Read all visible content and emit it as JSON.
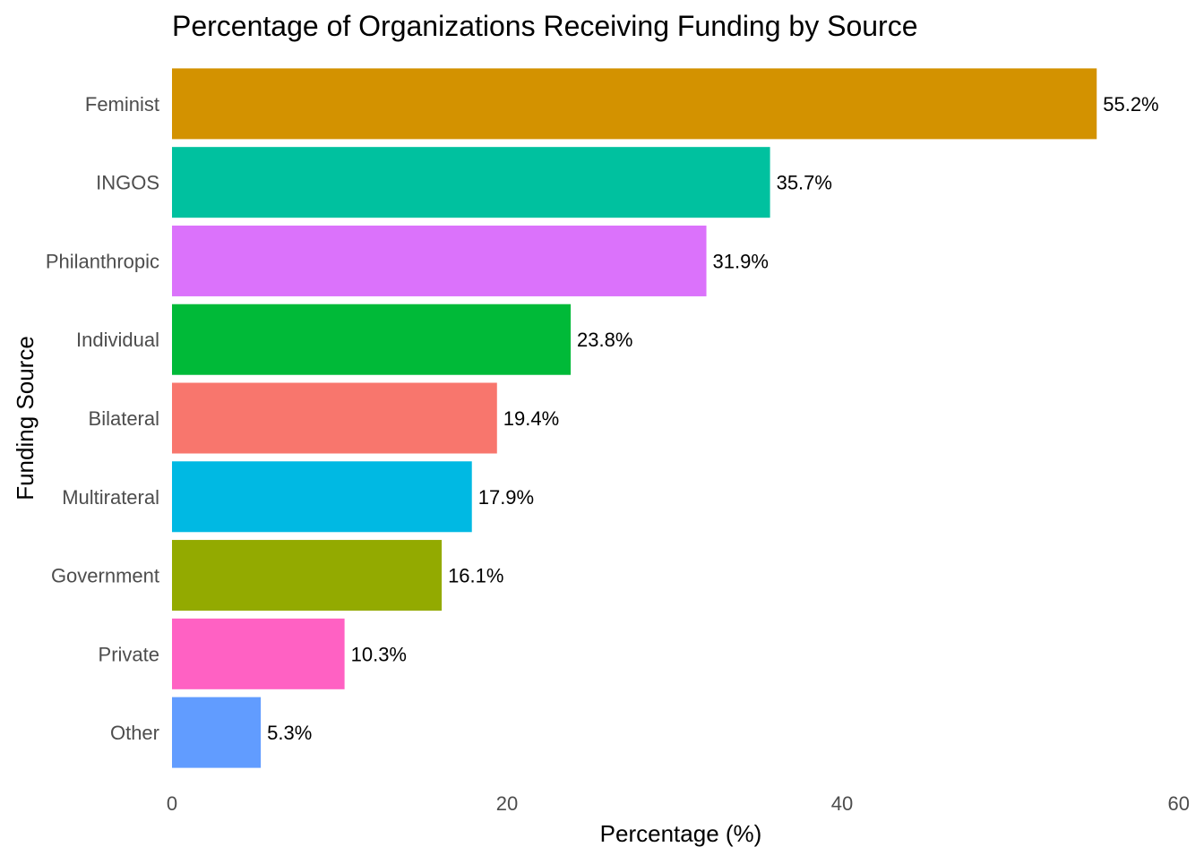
{
  "chart_data": {
    "type": "bar",
    "orientation": "horizontal",
    "title": "Percentage of Organizations Receiving Funding by Source",
    "xlabel": "Percentage (%)",
    "ylabel": "Funding Source",
    "xlim": [
      0,
      60
    ],
    "x_ticks": [
      "0",
      "20",
      "40",
      "60"
    ],
    "grid": false,
    "legend": "none",
    "categories": [
      "Feminist",
      "INGOS",
      "Philanthropic",
      "Individual",
      "Bilateral",
      "Multirateral",
      "Government",
      "Private",
      "Other"
    ],
    "values": [
      55.2,
      35.7,
      31.9,
      23.8,
      19.4,
      17.9,
      16.1,
      10.3,
      5.3
    ],
    "labels": [
      "55.2%",
      "35.7%",
      "31.9%",
      "23.8%",
      "19.4%",
      "17.9%",
      "16.1%",
      "10.3%",
      "5.3%"
    ],
    "colors": [
      "#D39200",
      "#00C19F",
      "#DB72FB",
      "#00BA38",
      "#F8766D",
      "#00B9E3",
      "#93AA00",
      "#FF61C3",
      "#619CFF"
    ]
  }
}
